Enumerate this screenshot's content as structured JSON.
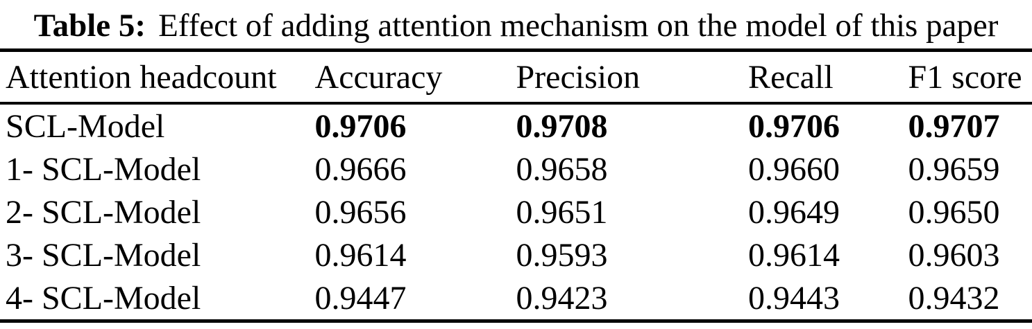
{
  "caption": {
    "label": "Table 5:",
    "text": "Effect of adding attention mechanism on the model of this paper"
  },
  "table": {
    "columns": [
      "Attention headcount",
      "Accuracy",
      "Precision",
      "Recall",
      "F1 score"
    ],
    "rows": [
      {
        "name": "SCL-Model",
        "bold": true,
        "values": [
          "0.9706",
          "0.9708",
          "0.9706",
          "0.9707"
        ]
      },
      {
        "name": "1- SCL-Model",
        "bold": false,
        "values": [
          "0.9666",
          "0.9658",
          "0.9660",
          "0.9659"
        ]
      },
      {
        "name": "2- SCL-Model",
        "bold": false,
        "values": [
          "0.9656",
          "0.9651",
          "0.9649",
          "0.9650"
        ]
      },
      {
        "name": "3- SCL-Model",
        "bold": false,
        "values": [
          "0.9614",
          "0.9593",
          "0.9614",
          "0.9603"
        ]
      },
      {
        "name": "4- SCL-Model",
        "bold": false,
        "values": [
          "0.9447",
          "0.9423",
          "0.9443",
          "0.9432"
        ]
      }
    ]
  }
}
